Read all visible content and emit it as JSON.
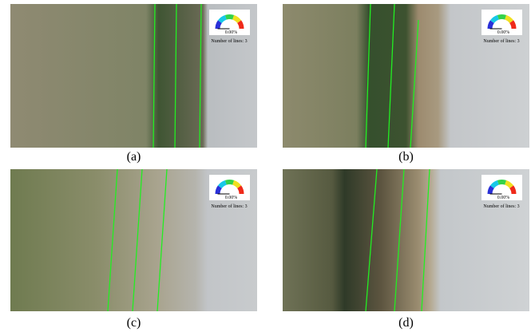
{
  "panels": [
    {
      "caption": "(a)",
      "gauge_value": "0.00%",
      "lines_label": "Number of lines: 3"
    },
    {
      "caption": "(b)",
      "gauge_value": "0.00%",
      "lines_label": "Number of lines: 3"
    },
    {
      "caption": "(c)",
      "gauge_value": "0.00%",
      "lines_label": "Number of lines: 3"
    },
    {
      "caption": "(d)",
      "gauge_value": "0.00%",
      "lines_label": "Number of lines: 3"
    }
  ]
}
